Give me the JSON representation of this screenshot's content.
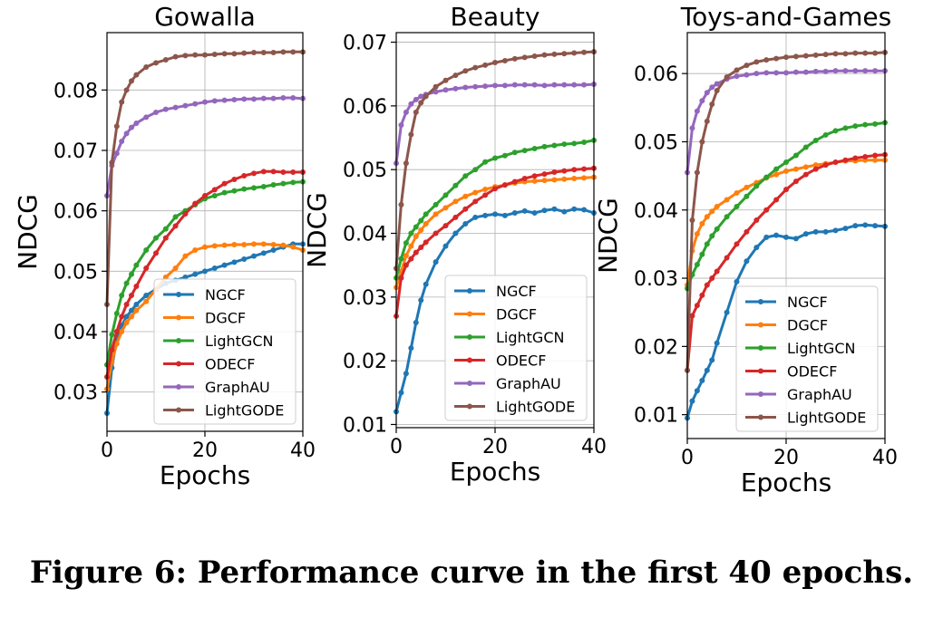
{
  "caption": "Figure 6: Performance curve in the first 40 epochs.",
  "colors": {
    "NGCF": "#1f77b4",
    "DGCF": "#ff7f0e",
    "LightGCN": "#2ca02c",
    "ODECF": "#d62728",
    "GraphAU": "#9467bd",
    "LightGODE": "#8c564b"
  },
  "chart_data": [
    {
      "type": "line",
      "title": "Gowalla",
      "xlabel": "Epochs",
      "ylabel": "NDCG",
      "xlim": [
        0,
        40
      ],
      "ylim": [
        0.0235,
        0.0895
      ],
      "xticks": [
        0,
        20,
        40
      ],
      "yticks": [
        0.03,
        0.04,
        0.05,
        0.06,
        0.07,
        0.08
      ],
      "ytick_labels": [
        "0.03",
        "0.04",
        "0.05",
        "0.06",
        "0.07",
        "0.08"
      ],
      "grid": true,
      "legend": "lower-right",
      "series": [
        {
          "name": "NGCF",
          "x": [
            0,
            1,
            2,
            3,
            4,
            5,
            6,
            8,
            10,
            12,
            14,
            16,
            18,
            20,
            22,
            24,
            26,
            28,
            30,
            32,
            34,
            36,
            38,
            40
          ],
          "y": [
            0.0265,
            0.034,
            0.039,
            0.041,
            0.0425,
            0.0435,
            0.0445,
            0.046,
            0.047,
            0.048,
            0.0485,
            0.049,
            0.0495,
            0.05,
            0.0505,
            0.051,
            0.0515,
            0.052,
            0.0525,
            0.053,
            0.0535,
            0.054,
            0.0545,
            0.0545
          ]
        },
        {
          "name": "DGCF",
          "x": [
            0,
            1,
            2,
            3,
            4,
            5,
            6,
            8,
            10,
            12,
            14,
            16,
            18,
            20,
            22,
            24,
            26,
            28,
            30,
            32,
            34,
            36,
            38,
            40
          ],
          "y": [
            0.0305,
            0.035,
            0.038,
            0.04,
            0.0415,
            0.0425,
            0.0435,
            0.045,
            0.047,
            0.049,
            0.0505,
            0.0525,
            0.0535,
            0.054,
            0.0542,
            0.0543,
            0.0544,
            0.0544,
            0.0545,
            0.0545,
            0.0544,
            0.0543,
            0.054,
            0.0535
          ]
        },
        {
          "name": "LightGCN",
          "x": [
            0,
            1,
            2,
            3,
            4,
            5,
            6,
            8,
            10,
            12,
            14,
            16,
            18,
            20,
            22,
            24,
            26,
            28,
            30,
            32,
            34,
            36,
            38,
            40
          ],
          "y": [
            0.0345,
            0.0395,
            0.043,
            0.046,
            0.048,
            0.0495,
            0.051,
            0.0535,
            0.0555,
            0.057,
            0.059,
            0.06,
            0.061,
            0.062,
            0.0625,
            0.063,
            0.0633,
            0.0636,
            0.0638,
            0.064,
            0.0643,
            0.0645,
            0.0647,
            0.0648
          ]
        },
        {
          "name": "ODECF",
          "x": [
            0,
            1,
            2,
            3,
            4,
            5,
            6,
            8,
            10,
            12,
            14,
            16,
            18,
            20,
            22,
            24,
            26,
            28,
            30,
            32,
            34,
            36,
            38,
            40
          ],
          "y": [
            0.0325,
            0.037,
            0.04,
            0.0425,
            0.0445,
            0.046,
            0.0475,
            0.0505,
            0.053,
            0.0555,
            0.0575,
            0.0595,
            0.0612,
            0.0625,
            0.0635,
            0.0645,
            0.0652,
            0.0658,
            0.0662,
            0.0665,
            0.0665,
            0.0664,
            0.0664,
            0.0664
          ]
        },
        {
          "name": "GraphAU",
          "x": [
            0,
            1,
            2,
            3,
            4,
            5,
            6,
            8,
            10,
            12,
            14,
            16,
            18,
            20,
            22,
            24,
            26,
            28,
            30,
            32,
            34,
            36,
            38,
            40
          ],
          "y": [
            0.0625,
            0.0675,
            0.0695,
            0.0715,
            0.0728,
            0.0738,
            0.0745,
            0.0755,
            0.0763,
            0.0768,
            0.0771,
            0.0774,
            0.0777,
            0.078,
            0.0782,
            0.0783,
            0.0784,
            0.0785,
            0.0785,
            0.0786,
            0.0786,
            0.0787,
            0.0787,
            0.0786
          ]
        },
        {
          "name": "LightGODE",
          "x": [
            0,
            1,
            2,
            3,
            4,
            5,
            6,
            8,
            10,
            12,
            14,
            16,
            18,
            20,
            22,
            24,
            26,
            28,
            30,
            32,
            34,
            36,
            38,
            40
          ],
          "y": [
            0.0445,
            0.068,
            0.074,
            0.078,
            0.08,
            0.0815,
            0.0825,
            0.0838,
            0.0845,
            0.085,
            0.0855,
            0.0857,
            0.0858,
            0.0858,
            0.0859,
            0.086,
            0.086,
            0.0861,
            0.0862,
            0.0862,
            0.0862,
            0.0863,
            0.0863,
            0.0863
          ]
        }
      ]
    },
    {
      "type": "line",
      "title": "Beauty",
      "xlabel": "Epochs",
      "ylabel": "NDCG",
      "xlim": [
        0,
        40
      ],
      "ylim": [
        0.0095,
        0.0715
      ],
      "xticks": [
        0,
        20,
        40
      ],
      "yticks": [
        0.01,
        0.02,
        0.03,
        0.04,
        0.05,
        0.06,
        0.07
      ],
      "ytick_labels": [
        "0.01",
        "0.02",
        "0.03",
        "0.04",
        "0.05",
        "0.06",
        "0.07"
      ],
      "grid": true,
      "legend": "lower-right",
      "series": [
        {
          "name": "NGCF",
          "x": [
            0,
            1,
            2,
            3,
            4,
            5,
            6,
            8,
            10,
            12,
            14,
            16,
            18,
            20,
            22,
            24,
            26,
            28,
            30,
            32,
            34,
            36,
            38,
            40
          ],
          "y": [
            0.012,
            0.015,
            0.018,
            0.022,
            0.026,
            0.0295,
            0.032,
            0.0355,
            0.038,
            0.04,
            0.0415,
            0.0425,
            0.0428,
            0.043,
            0.0428,
            0.0432,
            0.0435,
            0.0432,
            0.0436,
            0.0438,
            0.0434,
            0.0438,
            0.0437,
            0.0432
          ]
        },
        {
          "name": "DGCF",
          "x": [
            0,
            1,
            2,
            3,
            4,
            5,
            6,
            8,
            10,
            12,
            14,
            16,
            18,
            20,
            22,
            24,
            26,
            28,
            30,
            32,
            34,
            36,
            38,
            40
          ],
          "y": [
            0.0315,
            0.034,
            0.0365,
            0.038,
            0.0395,
            0.0405,
            0.0415,
            0.043,
            0.044,
            0.045,
            0.0458,
            0.0464,
            0.0469,
            0.0473,
            0.0476,
            0.0479,
            0.0481,
            0.0482,
            0.0483,
            0.0484,
            0.0485,
            0.0486,
            0.0487,
            0.0488
          ]
        },
        {
          "name": "LightGCN",
          "x": [
            0,
            1,
            2,
            3,
            4,
            5,
            6,
            8,
            10,
            12,
            14,
            16,
            18,
            20,
            22,
            24,
            26,
            28,
            30,
            32,
            34,
            36,
            38,
            40
          ],
          "y": [
            0.033,
            0.036,
            0.0385,
            0.04,
            0.041,
            0.042,
            0.043,
            0.0445,
            0.046,
            0.0475,
            0.049,
            0.05,
            0.0512,
            0.0518,
            0.0522,
            0.0527,
            0.053,
            0.0533,
            0.0536,
            0.0538,
            0.054,
            0.0541,
            0.0543,
            0.0546
          ]
        },
        {
          "name": "ODECF",
          "x": [
            0,
            1,
            2,
            3,
            4,
            5,
            6,
            8,
            10,
            12,
            14,
            16,
            18,
            20,
            22,
            24,
            26,
            28,
            30,
            32,
            34,
            36,
            38,
            40
          ],
          "y": [
            0.027,
            0.033,
            0.035,
            0.036,
            0.037,
            0.0378,
            0.0386,
            0.04,
            0.0412,
            0.0425,
            0.0438,
            0.045,
            0.046,
            0.047,
            0.0476,
            0.0481,
            0.0486,
            0.049,
            0.0493,
            0.0496,
            0.0498,
            0.05,
            0.0501,
            0.0502
          ]
        },
        {
          "name": "GraphAU",
          "x": [
            0,
            1,
            2,
            3,
            4,
            5,
            6,
            8,
            10,
            12,
            14,
            16,
            18,
            20,
            22,
            24,
            26,
            28,
            30,
            32,
            34,
            36,
            38,
            40
          ],
          "y": [
            0.051,
            0.057,
            0.059,
            0.0603,
            0.061,
            0.0615,
            0.0618,
            0.0622,
            0.0625,
            0.0627,
            0.0629,
            0.063,
            0.0631,
            0.0632,
            0.0632,
            0.0633,
            0.0633,
            0.0633,
            0.0632,
            0.0633,
            0.0633,
            0.0633,
            0.0633,
            0.0634
          ]
        },
        {
          "name": "LightGODE",
          "x": [
            0,
            1,
            2,
            3,
            4,
            5,
            6,
            8,
            10,
            12,
            14,
            16,
            18,
            20,
            22,
            24,
            26,
            28,
            30,
            32,
            34,
            36,
            38,
            40
          ],
          "y": [
            0.0345,
            0.0445,
            0.051,
            0.0555,
            0.059,
            0.0605,
            0.0615,
            0.063,
            0.064,
            0.0648,
            0.0655,
            0.066,
            0.0664,
            0.0668,
            0.0671,
            0.0674,
            0.0676,
            0.0678,
            0.068,
            0.0681,
            0.0682,
            0.0683,
            0.0684,
            0.0685
          ]
        }
      ]
    },
    {
      "type": "line",
      "title": "Toys-and-Games",
      "xlabel": "Epochs",
      "ylabel": "NDCG",
      "xlim": [
        0,
        40
      ],
      "ylim": [
        0.0065,
        0.066
      ],
      "xticks": [
        0,
        20,
        40
      ],
      "yticks": [
        0.01,
        0.02,
        0.03,
        0.04,
        0.05,
        0.06
      ],
      "ytick_labels": [
        "0.01",
        "0.02",
        "0.03",
        "0.04",
        "0.05",
        "0.06"
      ],
      "grid": true,
      "legend": "lower-right",
      "series": [
        {
          "name": "NGCF",
          "x": [
            0,
            1,
            2,
            3,
            4,
            5,
            6,
            8,
            10,
            12,
            14,
            16,
            18,
            20,
            22,
            24,
            26,
            28,
            30,
            32,
            34,
            36,
            38,
            40
          ],
          "y": [
            0.0095,
            0.012,
            0.0135,
            0.015,
            0.0165,
            0.018,
            0.0205,
            0.025,
            0.0295,
            0.0325,
            0.0345,
            0.036,
            0.0363,
            0.036,
            0.0358,
            0.0365,
            0.0368,
            0.0368,
            0.037,
            0.0373,
            0.0377,
            0.0378,
            0.0377,
            0.0376
          ]
        },
        {
          "name": "DGCF",
          "x": [
            0,
            1,
            2,
            3,
            4,
            5,
            6,
            8,
            10,
            12,
            14,
            16,
            18,
            20,
            22,
            24,
            26,
            28,
            30,
            32,
            34,
            36,
            38,
            40
          ],
          "y": [
            0.029,
            0.034,
            0.0365,
            0.038,
            0.039,
            0.0398,
            0.0405,
            0.0415,
            0.0425,
            0.0433,
            0.044,
            0.0447,
            0.0452,
            0.0457,
            0.046,
            0.0463,
            0.0466,
            0.0468,
            0.047,
            0.0472,
            0.0472,
            0.0473,
            0.0473,
            0.0473
          ]
        },
        {
          "name": "LightGCN",
          "x": [
            0,
            1,
            2,
            3,
            4,
            5,
            6,
            8,
            10,
            12,
            14,
            16,
            18,
            20,
            22,
            24,
            26,
            28,
            30,
            32,
            34,
            36,
            38,
            40
          ],
          "y": [
            0.0285,
            0.0305,
            0.032,
            0.0335,
            0.035,
            0.0362,
            0.0372,
            0.039,
            0.0405,
            0.042,
            0.0435,
            0.0448,
            0.046,
            0.047,
            0.048,
            0.0492,
            0.0502,
            0.051,
            0.0516,
            0.052,
            0.0523,
            0.0525,
            0.0526,
            0.0528
          ]
        },
        {
          "name": "ODECF",
          "x": [
            0,
            1,
            2,
            3,
            4,
            5,
            6,
            8,
            10,
            12,
            14,
            16,
            18,
            20,
            22,
            24,
            26,
            28,
            30,
            32,
            34,
            36,
            38,
            40
          ],
          "y": [
            0.0165,
            0.0245,
            0.026,
            0.0275,
            0.029,
            0.03,
            0.031,
            0.033,
            0.035,
            0.0368,
            0.0385,
            0.04,
            0.0415,
            0.043,
            0.0442,
            0.0452,
            0.046,
            0.0466,
            0.047,
            0.0473,
            0.0476,
            0.0478,
            0.048,
            0.0481
          ]
        },
        {
          "name": "GraphAU",
          "x": [
            0,
            1,
            2,
            3,
            4,
            5,
            6,
            8,
            10,
            12,
            14,
            16,
            18,
            20,
            22,
            24,
            26,
            28,
            30,
            32,
            34,
            36,
            38,
            40
          ],
          "y": [
            0.0455,
            0.052,
            0.0545,
            0.056,
            0.0572,
            0.058,
            0.0585,
            0.0592,
            0.0596,
            0.0598,
            0.06,
            0.0601,
            0.0601,
            0.0601,
            0.0602,
            0.0602,
            0.0603,
            0.0603,
            0.0604,
            0.0604,
            0.0604,
            0.0604,
            0.0604,
            0.0604
          ]
        },
        {
          "name": "LightGODE",
          "x": [
            0,
            1,
            2,
            3,
            4,
            5,
            6,
            8,
            10,
            12,
            14,
            16,
            18,
            20,
            22,
            24,
            26,
            28,
            30,
            32,
            34,
            36,
            38,
            40
          ],
          "y": [
            0.0165,
            0.0385,
            0.0455,
            0.05,
            0.053,
            0.0555,
            0.0575,
            0.0595,
            0.0605,
            0.0612,
            0.0617,
            0.062,
            0.0622,
            0.0624,
            0.0625,
            0.0626,
            0.0627,
            0.0628,
            0.0629,
            0.0629,
            0.063,
            0.063,
            0.063,
            0.0631
          ]
        }
      ]
    }
  ]
}
